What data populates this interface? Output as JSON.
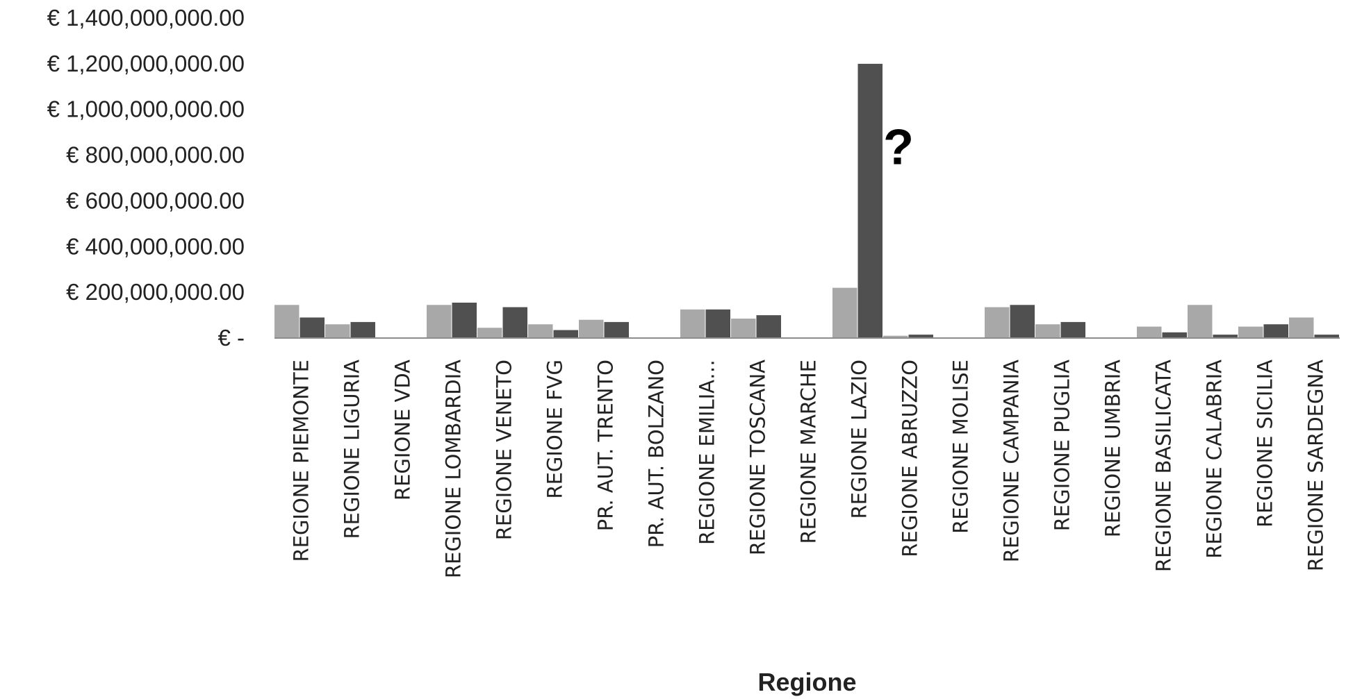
{
  "chart_data": {
    "type": "bar",
    "categories": [
      "REGIONE PIEMONTE",
      "REGIONE LIGURIA",
      "REGIONE VDA",
      "REGIONE LOMBARDIA",
      "REGIONE VENETO",
      "REGIONE FVG",
      "PR. AUT. TRENTO",
      "PR. AUT. BOLZANO",
      "REGIONE EMILIA…",
      "REGIONE TOSCANA",
      "REGIONE MARCHE",
      "REGIONE LAZIO",
      "REGIONE ABRUZZO",
      "REGIONE MOLISE",
      "REGIONE CAMPANIA",
      "REGIONE PUGLIA",
      "REGIONE UMBRIA",
      "REGIONE BASILICATA",
      "REGIONE CALABRIA",
      "REGIONE SICILIA",
      "REGIONE SARDEGNA"
    ],
    "series": [
      {
        "color": "#a8a8a8",
        "values": [
          145000000,
          60000000,
          0,
          145000000,
          45000000,
          60000000,
          80000000,
          0,
          125000000,
          85000000,
          0,
          220000000,
          10000000,
          0,
          135000000,
          60000000,
          0,
          50000000,
          145000000,
          50000000,
          90000000
        ]
      },
      {
        "color": "#505050",
        "values": [
          90000000,
          70000000,
          0,
          155000000,
          135000000,
          35000000,
          70000000,
          0,
          125000000,
          100000000,
          0,
          1200000000,
          15000000,
          0,
          145000000,
          70000000,
          0,
          25000000,
          15000000,
          60000000,
          15000000
        ]
      }
    ],
    "title": "",
    "xlabel": "Regione",
    "ylabel": "",
    "ylim": [
      0,
      1400000000
    ],
    "yticks": [
      0,
      200000000,
      400000000,
      600000000,
      800000000,
      1000000000,
      1200000000,
      1400000000
    ],
    "ytick_labels": [
      "€ -",
      "€ 200,000,000.00",
      "€ 400,000,000.00",
      "€ 600,000,000.00",
      "€ 800,000,000.00",
      "€ 1,000,000,000.00",
      "€ 1,200,000,000.00",
      "€ 1,400,000,000.00"
    ],
    "grid": false,
    "legend": "none",
    "annotation": {
      "text": "?"
    },
    "axis_color": "#8c8c8c"
  }
}
